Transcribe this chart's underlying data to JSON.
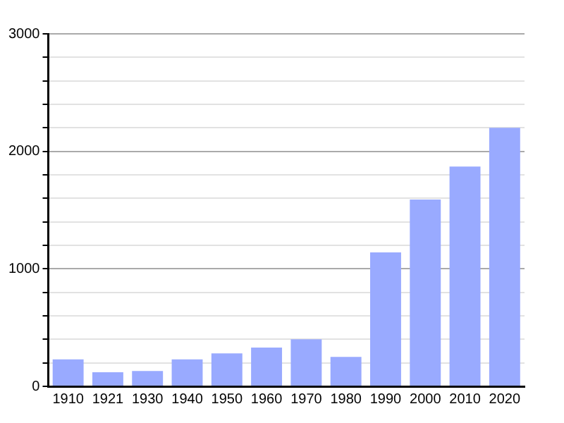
{
  "chart_data": {
    "type": "bar",
    "categories": [
      "1910",
      "1921",
      "1930",
      "1940",
      "1950",
      "1960",
      "1970",
      "1980",
      "1990",
      "2000",
      "2010",
      "2020"
    ],
    "values": [
      230,
      120,
      130,
      230,
      280,
      330,
      400,
      250,
      1140,
      1590,
      1870,
      2200
    ],
    "color": "#99aaff",
    "ylim": [
      0,
      3000
    ],
    "yticks": [
      0,
      {
        "value": 200,
        "label": null
      },
      {
        "value": 400,
        "label": null
      },
      {
        "value": 600,
        "label": null
      },
      {
        "value": 800,
        "label": null
      },
      1000,
      {
        "value": 1200,
        "label": null
      },
      {
        "value": 1400,
        "label": null
      },
      {
        "value": 1600,
        "label": null
      },
      {
        "value": 1800,
        "label": null
      },
      2000,
      {
        "value": 2200,
        "label": null
      },
      {
        "value": 2400,
        "label": null
      },
      {
        "value": 2600,
        "label": null
      },
      {
        "value": 2800,
        "label": null
      },
      3000
    ],
    "grid": "y",
    "legend": false
  }
}
